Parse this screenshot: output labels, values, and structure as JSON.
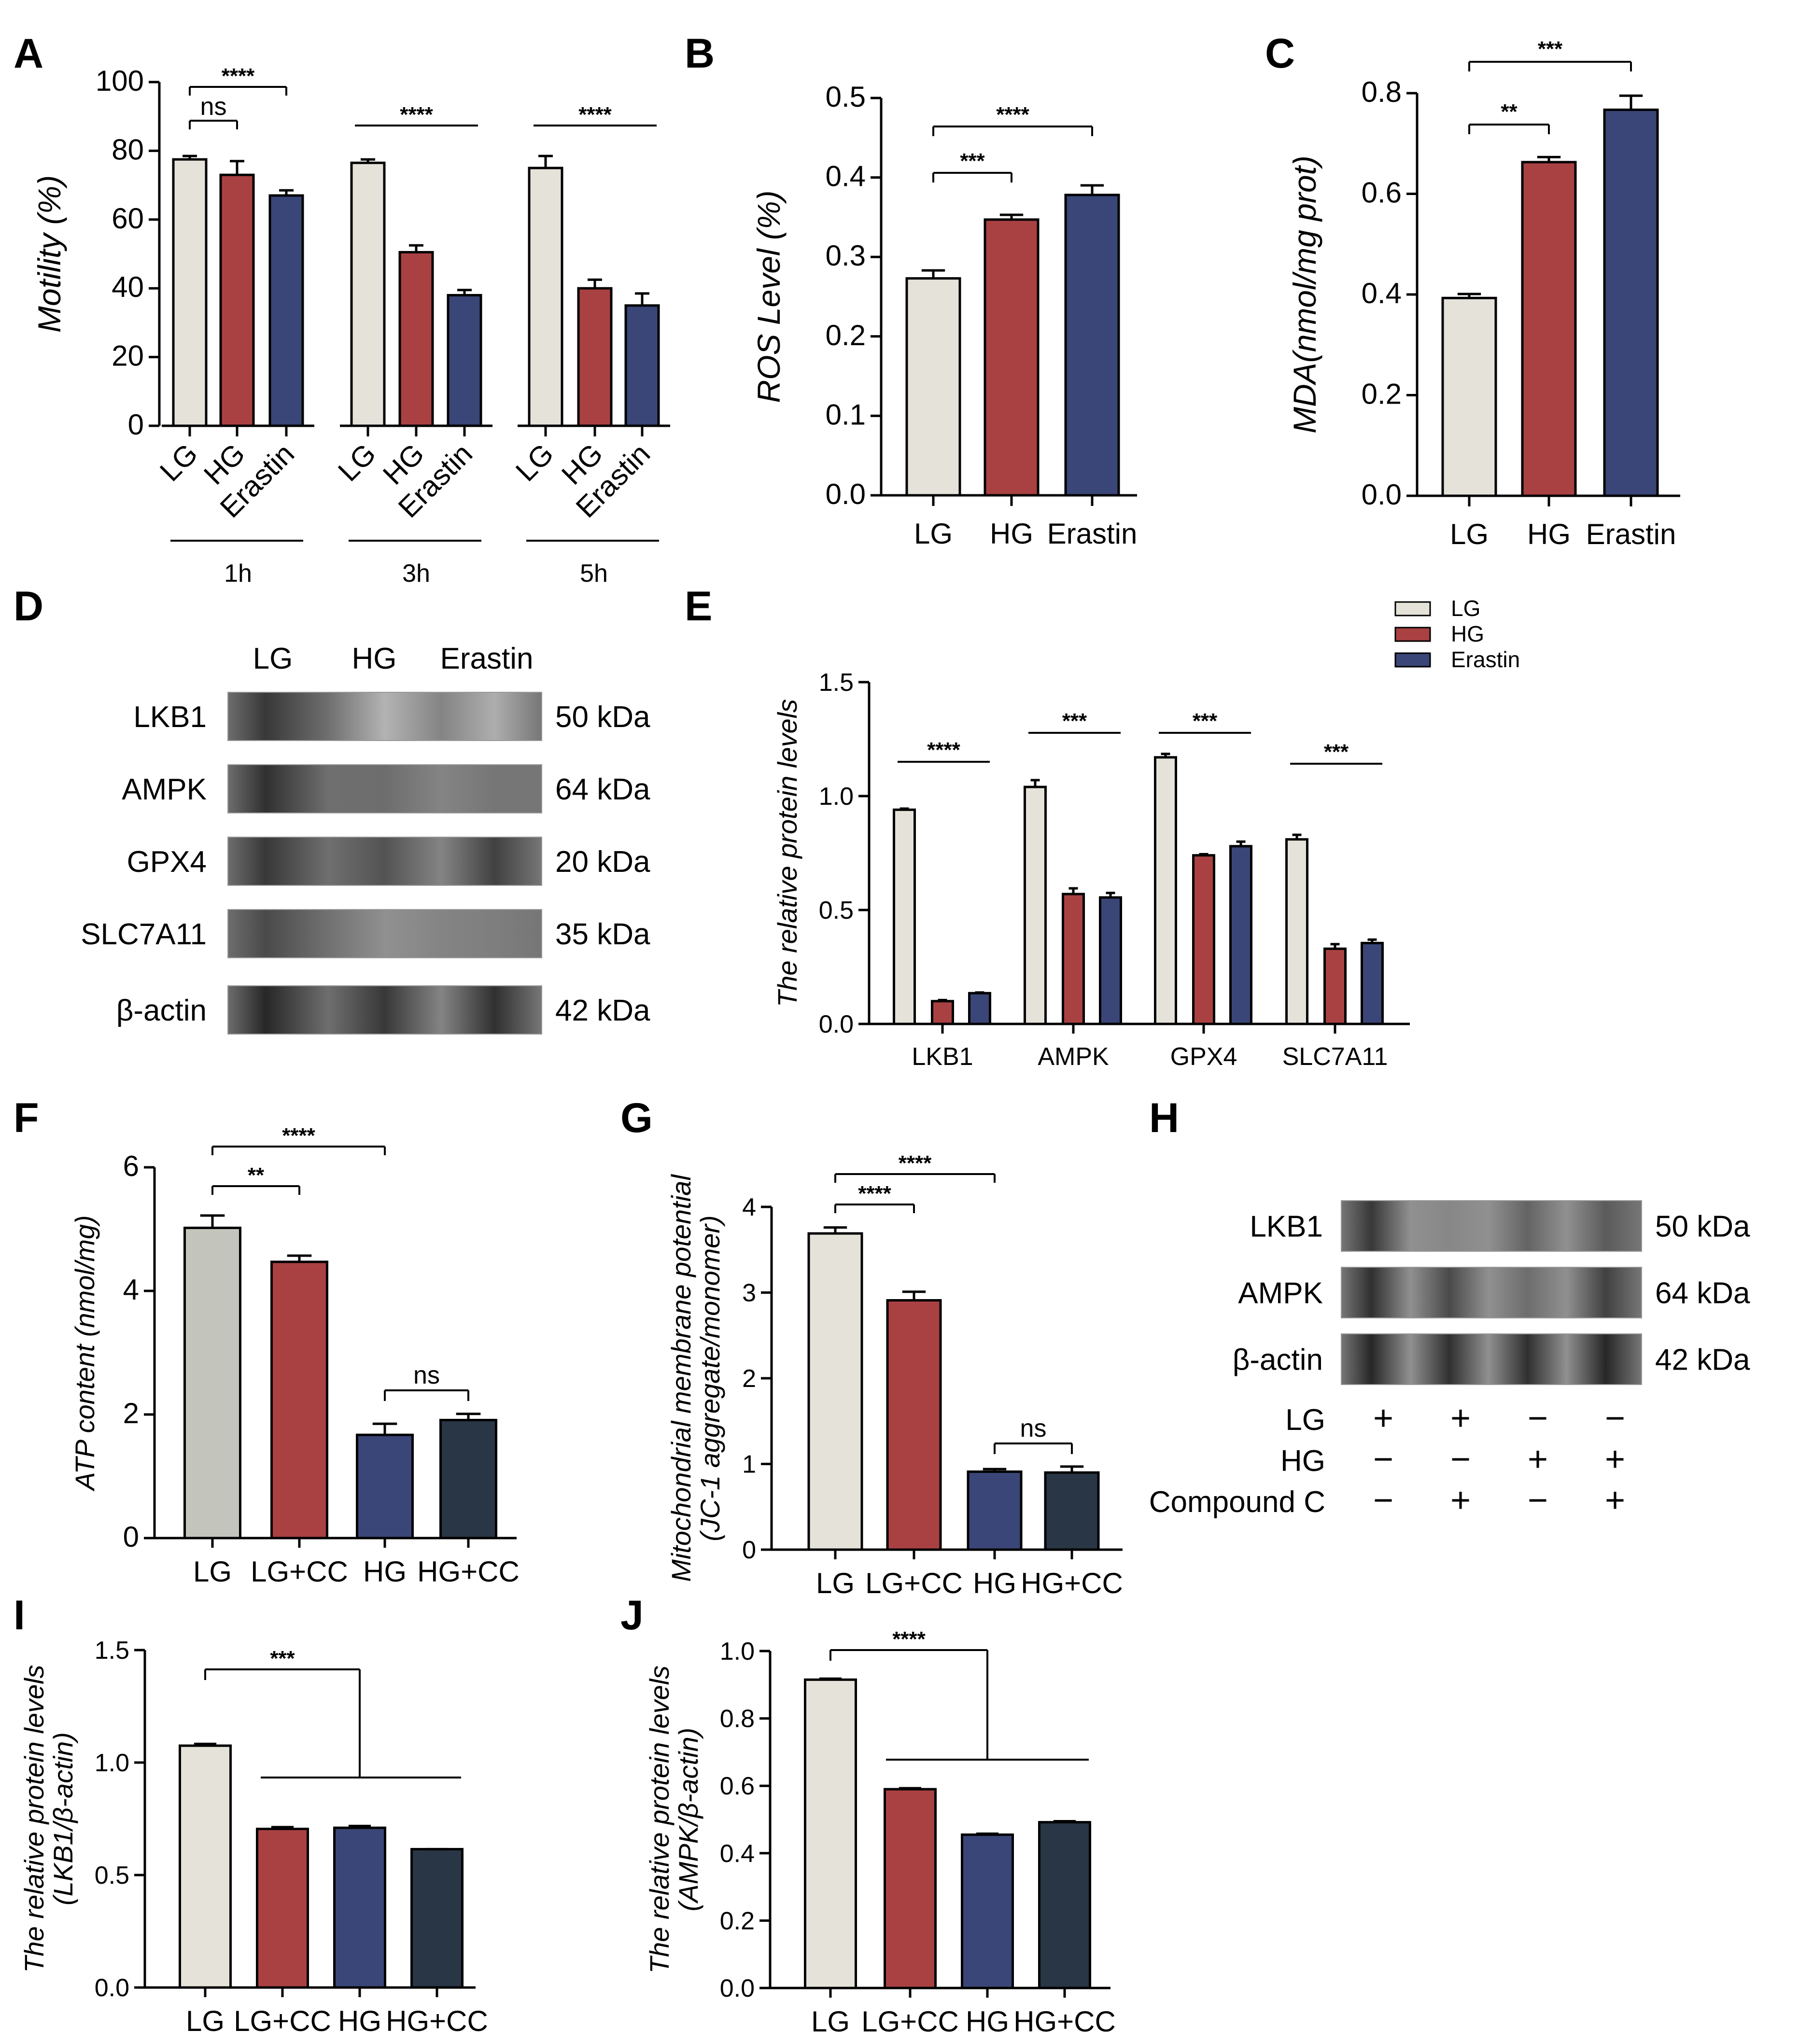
{
  "colors": {
    "LG": "#e5e2da",
    "HG": "#a94143",
    "Erastin": "#3a4677",
    "LG_grey": "#c3c5bd",
    "HGCC": "#283645"
  },
  "panels": {
    "A": "A",
    "B": "B",
    "C": "C",
    "D": "D",
    "E": "E",
    "F": "F",
    "G": "G",
    "H": "H",
    "I": "I",
    "J": "J"
  },
  "chart_data": [
    {
      "id": "A",
      "type": "bar",
      "ylabel": "Motility (%)",
      "ylim": [
        0,
        100
      ],
      "yticks": [
        "0",
        "20",
        "40",
        "60",
        "80",
        "100"
      ],
      "groups": [
        {
          "label": "1h",
          "categories": [
            "LG",
            "HG",
            "Erastin"
          ],
          "values": [
            77.5,
            73,
            67
          ],
          "errors": [
            1,
            4,
            1.5
          ]
        },
        {
          "label": "3h",
          "categories": [
            "LG",
            "HG",
            "Erastin"
          ],
          "values": [
            76.5,
            50.5,
            38
          ],
          "errors": [
            1,
            2,
            1.5
          ]
        },
        {
          "label": "5h",
          "categories": [
            "LG",
            "HG",
            "Erastin"
          ],
          "values": [
            75,
            40,
            35
          ],
          "errors": [
            3.5,
            2.5,
            3.5
          ]
        }
      ],
      "significance": [
        "****",
        "ns",
        "****",
        "****"
      ]
    },
    {
      "id": "B",
      "type": "bar",
      "ylabel": "ROS Level (%)",
      "ylim": [
        0,
        0.5
      ],
      "yticks": [
        "0.0",
        "0.1",
        "0.2",
        "0.3",
        "0.4",
        "0.5"
      ],
      "categories": [
        "LG",
        "HG",
        "Erastin"
      ],
      "values": [
        0.273,
        0.347,
        0.378
      ],
      "errors": [
        0.01,
        0.006,
        0.012
      ],
      "significance": [
        "****",
        "***"
      ]
    },
    {
      "id": "C",
      "type": "bar",
      "ylabel": "MDA(nmol/mg prot)",
      "ylim": [
        0,
        0.8
      ],
      "yticks": [
        "0.0",
        "0.2",
        "0.4",
        "0.6",
        "0.8"
      ],
      "categories": [
        "LG",
        "HG",
        "Erastin"
      ],
      "values": [
        0.393,
        0.663,
        0.767
      ],
      "errors": [
        0.008,
        0.01,
        0.028
      ],
      "significance": [
        "***",
        "**"
      ]
    },
    {
      "id": "E",
      "type": "bar",
      "ylabel": "The relative protein levels",
      "ylim": [
        0,
        1.5
      ],
      "yticks": [
        "0.0",
        "0.5",
        "1.0",
        "1.5"
      ],
      "categories": [
        "LKB1",
        "AMPK",
        "GPX4",
        "SLC7A11"
      ],
      "series": [
        {
          "name": "LG",
          "values": [
            0.94,
            1.04,
            1.17,
            0.81
          ],
          "errors": [
            0.005,
            0.03,
            0.015,
            0.02
          ]
        },
        {
          "name": "HG",
          "values": [
            0.1,
            0.57,
            0.74,
            0.33
          ],
          "errors": [
            0.005,
            0.025,
            0.005,
            0.02
          ]
        },
        {
          "name": "Erastin",
          "values": [
            0.135,
            0.555,
            0.78,
            0.355
          ],
          "errors": [
            0.003,
            0.02,
            0.02,
            0.015
          ]
        }
      ],
      "significance": [
        "****",
        "***",
        "***",
        "***"
      ]
    },
    {
      "id": "F",
      "type": "bar",
      "ylabel": "ATP content (nmol/mg)",
      "ylim": [
        0,
        6
      ],
      "yticks": [
        "0",
        "2",
        "4",
        "6"
      ],
      "categories": [
        "LG",
        "LG+CC",
        "HG",
        "HG+CC"
      ],
      "values": [
        5.02,
        4.47,
        1.67,
        1.91
      ],
      "errors": [
        0.2,
        0.1,
        0.18,
        0.1
      ],
      "significance": [
        "****",
        "**",
        "ns"
      ]
    },
    {
      "id": "G",
      "type": "bar",
      "ylabel": [
        "Mitochondrial membrane potential",
        "(JC-1 aggregate/monomer)"
      ],
      "ylim": [
        0,
        4
      ],
      "yticks": [
        "0",
        "1",
        "2",
        "3",
        "4"
      ],
      "categories": [
        "LG",
        "LG+CC",
        "HG",
        "HG+CC"
      ],
      "values": [
        3.69,
        2.91,
        0.91,
        0.9
      ],
      "errors": [
        0.07,
        0.1,
        0.03,
        0.07
      ],
      "significance": [
        "****",
        "****",
        "ns"
      ]
    },
    {
      "id": "I",
      "type": "bar",
      "ylabel": [
        "The relative protein levels",
        "(LKB1/β-actin)"
      ],
      "ylim": [
        0,
        1.5
      ],
      "yticks": [
        "0.0",
        "0.5",
        "1.0",
        "1.5"
      ],
      "categories": [
        "LG",
        "LG+CC",
        "HG",
        "HG+CC"
      ],
      "values": [
        1.075,
        0.705,
        0.71,
        0.615
      ],
      "errors": [
        0.008,
        0.008,
        0.008,
        0.0
      ],
      "significance": [
        "***"
      ]
    },
    {
      "id": "J",
      "type": "bar",
      "ylabel": [
        "The relative protein levels",
        "(AMPK/β-actin)"
      ],
      "ylim": [
        0,
        1.0
      ],
      "yticks": [
        "0.0",
        "0.2",
        "0.4",
        "0.6",
        "0.8",
        "1.0"
      ],
      "categories": [
        "LG",
        "LG+CC",
        "HG",
        "HG+CC"
      ],
      "values": [
        0.915,
        0.59,
        0.455,
        0.492
      ],
      "errors": [
        0.003,
        0.003,
        0.003,
        0.003
      ],
      "significance": [
        "****"
      ]
    }
  ],
  "blotD": {
    "lanes": [
      "LG",
      "HG",
      "Erastin"
    ],
    "rows": [
      {
        "protein": "LKB1",
        "size": "50 kDa"
      },
      {
        "protein": "AMPK",
        "size": "64 kDa"
      },
      {
        "protein": "GPX4",
        "size": "20 kDa"
      },
      {
        "protein": "SLC7A11",
        "size": "35 kDa"
      },
      {
        "protein": "β-actin",
        "size": "42 kDa"
      }
    ]
  },
  "legendE": [
    "LG",
    "HG",
    "Erastin"
  ],
  "blotH": {
    "rows": [
      {
        "protein": "LKB1",
        "size": "50 kDa"
      },
      {
        "protein": "AMPK",
        "size": "64 kDa"
      },
      {
        "protein": "β-actin",
        "size": "42 kDa"
      }
    ],
    "conditions": [
      {
        "label": "LG",
        "signs": [
          "+",
          "+",
          "−",
          "−"
        ]
      },
      {
        "label": "HG",
        "signs": [
          "−",
          "−",
          "+",
          "+"
        ]
      },
      {
        "label": "Compound C",
        "signs": [
          "−",
          "+",
          "−",
          "+"
        ]
      }
    ]
  }
}
